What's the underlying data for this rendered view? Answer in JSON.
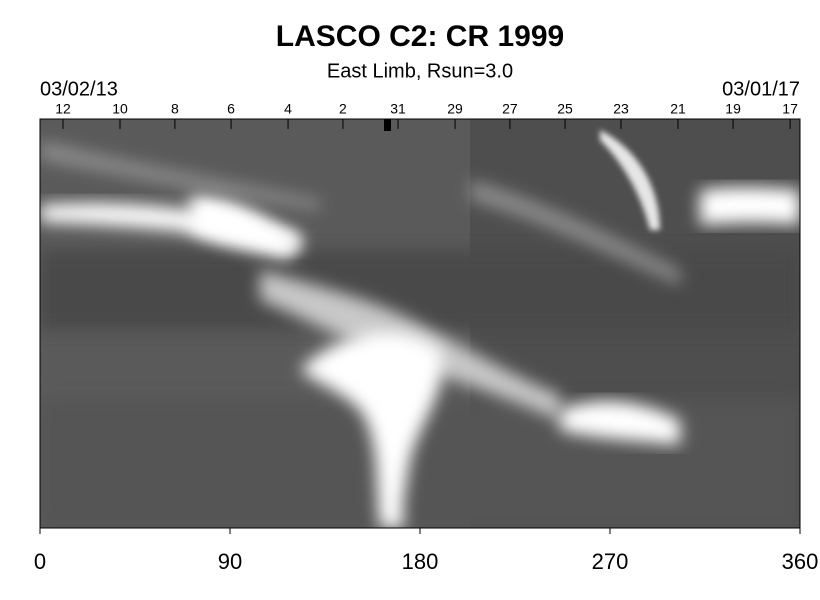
{
  "chart_data": {
    "type": "heatmap",
    "title": "LASCO C2: CR 1999",
    "subtitle": "East Limb, Rsun=3.0",
    "start_label": "03/02/13",
    "end_label": "03/01/17",
    "colormap": "gray",
    "xlim": [
      0,
      360
    ],
    "xticks": [
      0,
      90,
      180,
      270,
      360
    ],
    "x2lim": [
      0,
      360
    ],
    "x2ticks": [
      {
        "value": 10.9,
        "label": "12"
      },
      {
        "value": 37.9,
        "label": "10"
      },
      {
        "value": 63.9,
        "label": "8"
      },
      {
        "value": 90.5,
        "label": "6"
      },
      {
        "value": 117.5,
        "label": "4"
      },
      {
        "value": 143.5,
        "label": "2"
      },
      {
        "value": 169.6,
        "label": "31"
      },
      {
        "value": 196.6,
        "label": "29"
      },
      {
        "value": 222.6,
        "label": "27"
      },
      {
        "value": 248.7,
        "label": "25"
      },
      {
        "value": 275.2,
        "label": "23"
      },
      {
        "value": 302.2,
        "label": "21"
      },
      {
        "value": 328.3,
        "label": "19"
      },
      {
        "value": 355.3,
        "label": "17"
      }
    ]
  }
}
